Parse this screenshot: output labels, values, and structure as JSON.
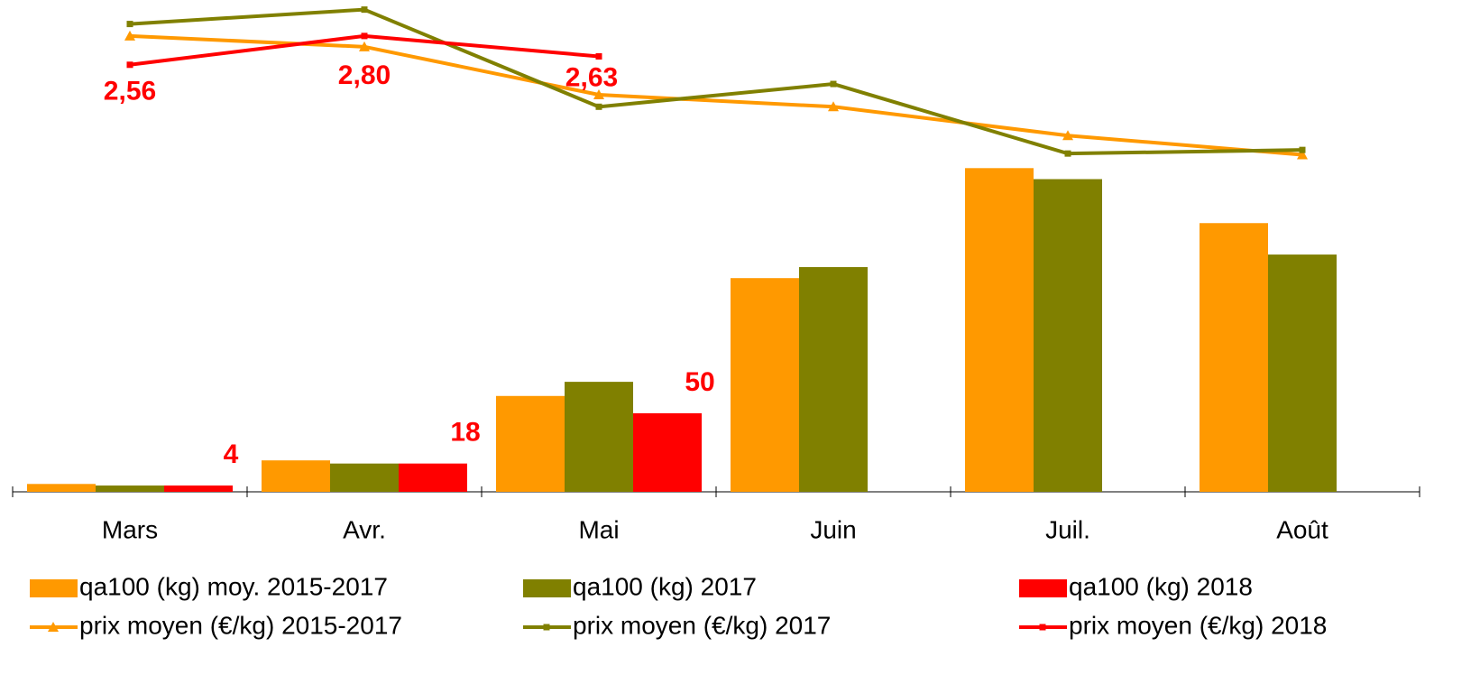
{
  "chart_data": {
    "type": "bar-line",
    "categories": [
      "Mars",
      "Avr.",
      "Mai",
      "Juin",
      "Juil.",
      "Août"
    ],
    "ylim": [
      0,
      313
    ],
    "y2lim": [
      -1,
      3.1
    ],
    "series": [
      {
        "name": "qa100 (kg) moy. 2015-2017",
        "type": "bar",
        "color": "#ff9900",
        "values": [
          5,
          20,
          61,
          136,
          206,
          171
        ]
      },
      {
        "name": "qa100 (kg) 2017",
        "type": "bar",
        "color": "#808000",
        "values": [
          4,
          18,
          70,
          143,
          199,
          151
        ]
      },
      {
        "name": "qa100 (kg) 2018",
        "type": "bar",
        "color": "#ff0000",
        "values": [
          4,
          18,
          50,
          null,
          null,
          null
        ],
        "data_labels": true
      },
      {
        "name": "prix moyen (€/kg) 2015-2017",
        "type": "line",
        "axis": "y2",
        "marker": "triangle",
        "color": "#ff9900",
        "values": [
          2.8,
          2.71,
          2.31,
          2.21,
          1.97,
          1.81
        ]
      },
      {
        "name": "prix moyen (€/kg) 2017",
        "type": "line",
        "axis": "y2",
        "marker": "square",
        "color": "#808000",
        "values": [
          2.9,
          3.02,
          2.21,
          2.4,
          1.82,
          1.85
        ]
      },
      {
        "name": "prix moyen (€/kg) 2018",
        "type": "line",
        "axis": "y2",
        "marker": "square",
        "color": "#ff0000",
        "values": [
          2.56,
          2.8,
          2.63,
          null,
          null,
          null
        ],
        "value_labels": [
          "2,56",
          "2,80",
          "2,63",
          null,
          null,
          null
        ]
      }
    ]
  }
}
